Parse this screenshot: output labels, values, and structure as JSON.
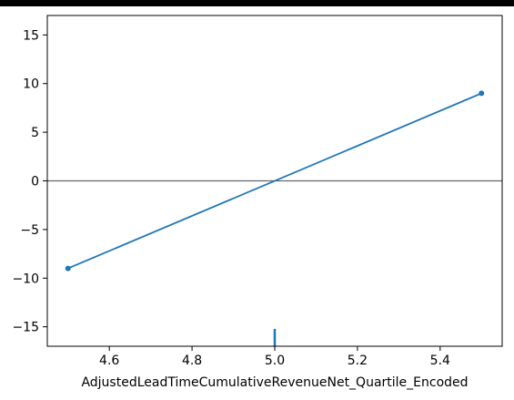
{
  "chart_data": {
    "type": "line",
    "title": "",
    "xlabel": "AdjustedLeadTimeCumulativeRevenueNet_Quartile_Encoded",
    "ylabel": "",
    "xlim": [
      4.45,
      5.55
    ],
    "ylim": [
      -17,
      17
    ],
    "x_ticks": [
      4.6,
      4.8,
      5.0,
      5.2,
      5.4
    ],
    "x_tick_labels": [
      "4.6",
      "4.8",
      "5.0",
      "5.2",
      "5.4"
    ],
    "y_ticks": [
      15,
      10,
      5,
      0,
      -5,
      -10,
      -15
    ],
    "y_tick_labels": [
      "15",
      "10",
      "5",
      "0",
      "−5",
      "−10",
      "−15"
    ],
    "grid": false,
    "series": [
      {
        "x": [
          4.5,
          5.5
        ],
        "y": [
          -9,
          9
        ],
        "color": "#1f77b4",
        "markers": true
      }
    ],
    "reference_line": {
      "y": 0,
      "color": "#666666"
    },
    "rug": {
      "x": [
        5.0
      ],
      "color": "#1f77b4"
    }
  }
}
